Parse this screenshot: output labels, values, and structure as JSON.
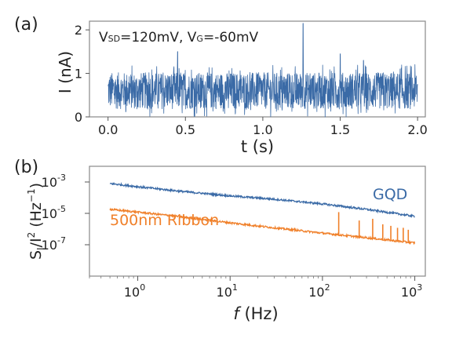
{
  "chart_data": [
    {
      "type": "line",
      "panel_label": "(a)",
      "annotation": "VSD=120mV, VG=-60mV",
      "annotation_parts": {
        "v1": "V",
        "s1": "SD",
        "eq1": "=120mV, V",
        "s2": "G",
        "eq2": "=-60mV"
      },
      "xlabel": "t (s)",
      "ylabel": "I (nA)",
      "xlim": [
        -0.12,
        2.05
      ],
      "ylim": [
        0,
        2.2
      ],
      "xticks": [
        0.0,
        0.5,
        1.0,
        1.5,
        2.0
      ],
      "xtick_labels": [
        "0.0",
        "0.5",
        "1.0",
        "1.5",
        "2.0"
      ],
      "yticks": [
        0,
        1,
        2
      ],
      "ytick_labels": [
        "0",
        "1",
        "2"
      ],
      "series": [
        {
          "color": "#3a6aa6",
          "x_range": [
            0.0,
            2.0
          ],
          "mean": 0.6,
          "band": [
            0.2,
            1.25
          ],
          "spikes": [
            [
              1.26,
              2.15
            ],
            [
              0.45,
              1.5
            ],
            [
              1.5,
              1.45
            ],
            [
              1.65,
              1.3
            ]
          ]
        }
      ]
    },
    {
      "type": "line",
      "panel_label": "(b)",
      "xlabel_italic": "f",
      "xlabel_rest": " (Hz)",
      "ylabel": "SI/I2 (Hz−1)",
      "ylabel_parts": {
        "s": "S",
        "sub": "I",
        "mid": "/I",
        "sup": "2",
        "unit": " (Hz",
        "unitsup": "−1",
        "close": ")"
      },
      "x_scale": "log",
      "y_scale": "log",
      "xlim": [
        0.3,
        1300
      ],
      "ylim": [
        1e-09,
        0.01
      ],
      "xticks": [
        1,
        10,
        100,
        1000
      ],
      "xtick_labels": [
        {
          "base": "10",
          "exp": "0"
        },
        {
          "base": "10",
          "exp": "1"
        },
        {
          "base": "10",
          "exp": "2"
        },
        {
          "base": "10",
          "exp": "3"
        }
      ],
      "yticks": [
        0.001,
        1e-05,
        1e-07
      ],
      "ytick_labels": [
        {
          "base": "10",
          "exp": "-3"
        },
        {
          "base": "10",
          "exp": "-5"
        },
        {
          "base": "10",
          "exp": "-7"
        }
      ],
      "series": [
        {
          "name": "GQD",
          "color": "#3a6aa6",
          "points": [
            [
              0.5,
              0.0008
            ],
            [
              1,
              0.0005
            ],
            [
              3,
              0.00025
            ],
            [
              10,
              0.00013
            ],
            [
              30,
              8e-05
            ],
            [
              100,
              4e-05
            ],
            [
              300,
              1.8e-05
            ],
            [
              1000,
              6.5e-06
            ]
          ]
        },
        {
          "name": "500nm Ribbon",
          "color": "#f0802a",
          "points": [
            [
              0.5,
              1.8e-05
            ],
            [
              1,
              1.2e-05
            ],
            [
              3,
              6e-06
            ],
            [
              10,
              2.5e-06
            ],
            [
              30,
              1.2e-06
            ],
            [
              100,
              5.5e-07
            ],
            [
              300,
              2.8e-07
            ],
            [
              1000,
              1.3e-07
            ]
          ],
          "spikes": [
            [
              50,
              1.2e-06
            ],
            [
              150,
              1.2e-05
            ],
            [
              250,
              3.5e-06
            ],
            [
              350,
              4.5e-06
            ],
            [
              450,
              2e-06
            ],
            [
              550,
              1.6e-06
            ],
            [
              650,
              1.2e-06
            ],
            [
              750,
              1.2e-06
            ],
            [
              850,
              9e-07
            ]
          ]
        }
      ]
    }
  ]
}
